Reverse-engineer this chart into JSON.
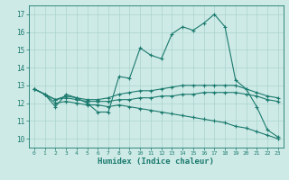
{
  "xlabel": "Humidex (Indice chaleur)",
  "xlim": [
    -0.5,
    23.5
  ],
  "ylim": [
    9.5,
    17.5
  ],
  "yticks": [
    10,
    11,
    12,
    13,
    14,
    15,
    16,
    17
  ],
  "xticks": [
    0,
    1,
    2,
    3,
    4,
    5,
    6,
    7,
    8,
    9,
    10,
    11,
    12,
    13,
    14,
    15,
    16,
    17,
    18,
    19,
    20,
    21,
    22,
    23
  ],
  "bg_color": "#ceeae6",
  "grid_color": "#aad4ce",
  "line_color": "#1a7a6e",
  "series": [
    [
      12.8,
      12.5,
      11.8,
      12.5,
      12.3,
      12.0,
      11.5,
      11.5,
      13.5,
      13.4,
      15.1,
      14.7,
      14.5,
      15.9,
      16.3,
      16.1,
      16.5,
      17.0,
      16.3,
      13.3,
      12.8,
      11.8,
      10.5,
      10.1
    ],
    [
      12.8,
      12.5,
      12.2,
      12.4,
      12.3,
      12.2,
      12.2,
      12.3,
      12.5,
      12.6,
      12.7,
      12.7,
      12.8,
      12.9,
      13.0,
      13.0,
      13.0,
      13.0,
      13.0,
      13.0,
      12.8,
      12.6,
      12.4,
      12.3
    ],
    [
      12.8,
      12.5,
      12.2,
      12.3,
      12.2,
      12.1,
      12.1,
      12.1,
      12.2,
      12.2,
      12.3,
      12.3,
      12.4,
      12.4,
      12.5,
      12.5,
      12.6,
      12.6,
      12.6,
      12.6,
      12.5,
      12.4,
      12.2,
      12.1
    ],
    [
      12.8,
      12.5,
      12.0,
      12.1,
      12.0,
      11.9,
      11.9,
      11.8,
      11.9,
      11.8,
      11.7,
      11.6,
      11.5,
      11.4,
      11.3,
      11.2,
      11.1,
      11.0,
      10.9,
      10.7,
      10.6,
      10.4,
      10.2,
      10.0
    ]
  ]
}
